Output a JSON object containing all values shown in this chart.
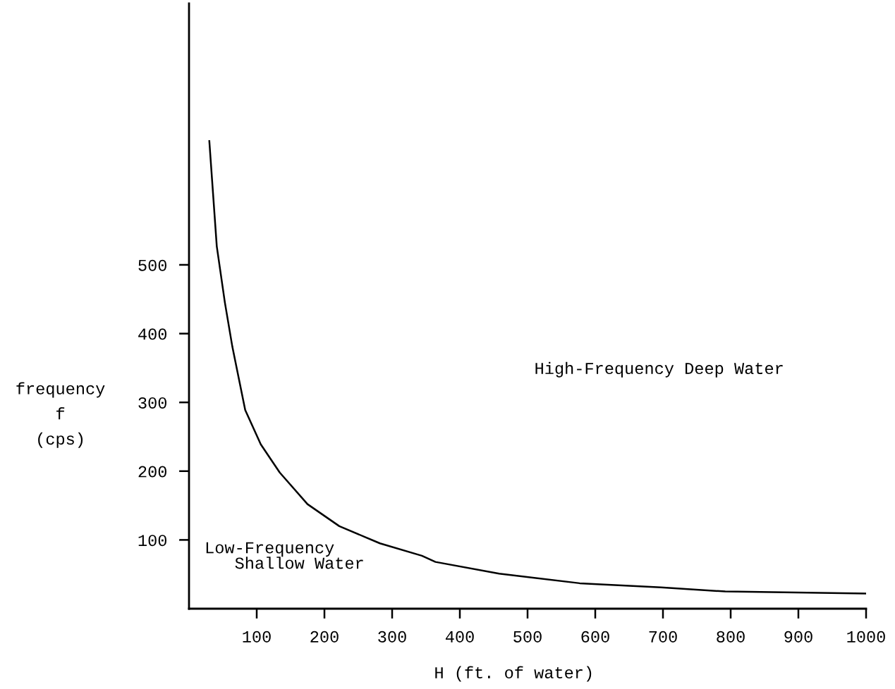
{
  "chart_data": {
    "type": "line",
    "xlabel": "H (ft. of water)",
    "ylabel": "frequency\nf\n(cps)",
    "x": [
      30,
      41,
      53,
      64,
      83,
      106,
      134,
      175,
      222,
      282,
      344,
      364,
      458,
      577,
      697,
      792,
      1000
    ],
    "series": [
      {
        "color": "#000000",
        "values": [
          680,
          527,
          445,
          381,
          289,
          239,
          198,
          152,
          120,
          95,
          77,
          68,
          51,
          37,
          31,
          25,
          22
        ]
      }
    ],
    "xlim": [
      0,
      1000
    ],
    "ylim": [
      0,
      880
    ],
    "xticks": [
      100,
      200,
      300,
      400,
      500,
      600,
      700,
      800,
      900,
      1000
    ],
    "yticks": [
      100,
      200,
      300,
      400,
      500
    ],
    "annotations": [
      "Low-Frequency\n   Shallow Water",
      "High-Frequency Deep Water"
    ],
    "grid": false,
    "legend": false,
    "marker": "none",
    "line_style": "solid"
  }
}
